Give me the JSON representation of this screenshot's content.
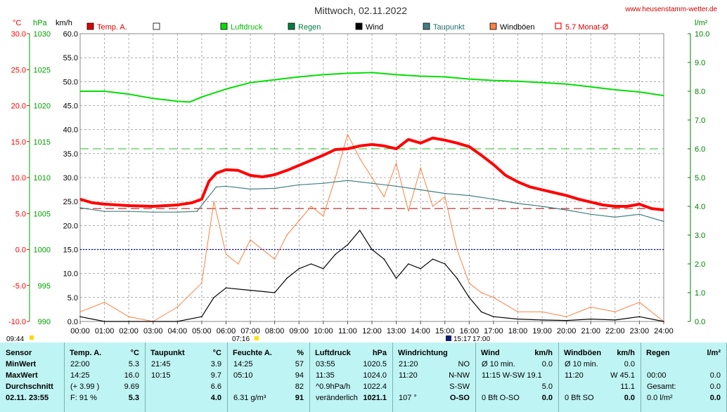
{
  "chart_data": {
    "type": "line",
    "title": "Mittwoch, 02.11.2022",
    "source_label": "www.heusenstamm-wetter.de",
    "x_ticks": [
      "00:00",
      "01:00",
      "02:00",
      "03:00",
      "04:00",
      "05:00",
      "06:00",
      "07:00",
      "08:00",
      "09:00",
      "10:00",
      "11:00",
      "12:00",
      "13:00",
      "14:00",
      "15:00",
      "16:00",
      "17:00",
      "18:00",
      "19:00",
      "20:00",
      "21:00",
      "22:00",
      "23:00",
      "24:00"
    ],
    "axes": {
      "temp": {
        "unit": "°C",
        "ticks": [
          "30.0",
          "25.0",
          "20.0",
          "15.0",
          "10.0",
          "5.0",
          "0.0",
          "-5.0",
          "-10.0"
        ],
        "ylim": [
          -10,
          30
        ],
        "color": "#ff0000"
      },
      "pressure": {
        "unit": "hPa",
        "ticks": [
          "1030",
          "1025",
          "1020",
          "1015",
          "1010",
          "1005",
          "1000",
          "995",
          "990"
        ],
        "ylim": [
          990,
          1030
        ],
        "color": "#00a000"
      },
      "wind": {
        "unit": "km/h",
        "ticks": [
          "60.0",
          "55.0",
          "50.0",
          "45.0",
          "40.0",
          "35.0",
          "30.0",
          "25.0",
          "20.0",
          "15.0",
          "10.0",
          "5.0",
          "0.0"
        ],
        "ylim": [
          0,
          60
        ],
        "color": "#000000"
      },
      "rain": {
        "unit": "l/m²",
        "ticks": [
          "10.0",
          "9.0",
          "8.0",
          "7.0",
          "6.0",
          "5.0",
          "4.0",
          "3.0",
          "2.0",
          "1.0",
          "0.0"
        ],
        "ylim": [
          0,
          10
        ],
        "color": "#008000"
      }
    },
    "legend": [
      {
        "name": "Temp. A.",
        "color": "#e00000",
        "marker": "box"
      },
      {
        "name": "",
        "color": "#ffffff",
        "marker": "box"
      },
      {
        "name": "Luftdruck",
        "color": "#00e000",
        "marker": "box"
      },
      {
        "name": "Regen",
        "color": "#008040",
        "marker": "box"
      },
      {
        "name": "Wind",
        "color": "#000000",
        "marker": "box"
      },
      {
        "name": "Taupunkt",
        "color": "#408080",
        "marker": "box"
      },
      {
        "name": "Windböen",
        "color": "#ff8040",
        "marker": "box"
      },
      {
        "name": "5.7 Monat-Ø",
        "color": "#ff0000",
        "marker": "outline"
      }
    ],
    "references": {
      "monthly_avg_temp": 5.7,
      "rain_threshold": 6.0,
      "zero_temp": 0.0
    },
    "time_markers": {
      "sunrise": "07:16",
      "sunset": "17:00",
      "moonrise": "09:44",
      "moonset": "15:17"
    },
    "series": [
      {
        "name": "Temp. A.",
        "unit": "°C",
        "color": "#ff0000",
        "points": [
          [
            0,
            7.0
          ],
          [
            0.5,
            6.5
          ],
          [
            1,
            6.3
          ],
          [
            2,
            6.1
          ],
          [
            3,
            6.0
          ],
          [
            4,
            6.2
          ],
          [
            4.6,
            6.5
          ],
          [
            5,
            7.0
          ],
          [
            5.3,
            9.5
          ],
          [
            5.6,
            10.6
          ],
          [
            6,
            11.1
          ],
          [
            6.5,
            11.0
          ],
          [
            7,
            10.3
          ],
          [
            7.5,
            10.1
          ],
          [
            8,
            10.4
          ],
          [
            8.5,
            11.0
          ],
          [
            9,
            11.7
          ],
          [
            9.5,
            12.4
          ],
          [
            10,
            13.1
          ],
          [
            10.5,
            13.9
          ],
          [
            11,
            14.0
          ],
          [
            11.5,
            14.4
          ],
          [
            12,
            14.6
          ],
          [
            12.5,
            14.4
          ],
          [
            13,
            14.0
          ],
          [
            13.5,
            15.3
          ],
          [
            14,
            14.8
          ],
          [
            14.5,
            15.5
          ],
          [
            15,
            15.2
          ],
          [
            15.5,
            14.8
          ],
          [
            16,
            14.3
          ],
          [
            16.5,
            13.1
          ],
          [
            17,
            11.8
          ],
          [
            17.5,
            10.3
          ],
          [
            18,
            9.4
          ],
          [
            18.5,
            8.7
          ],
          [
            19,
            8.3
          ],
          [
            19.5,
            7.9
          ],
          [
            20,
            7.5
          ],
          [
            20.5,
            7.0
          ],
          [
            21,
            6.6
          ],
          [
            21.5,
            6.2
          ],
          [
            22,
            6.0
          ],
          [
            22.5,
            6.0
          ],
          [
            23,
            6.3
          ],
          [
            23.5,
            5.7
          ],
          [
            24,
            5.5
          ]
        ]
      },
      {
        "name": "Taupunkt",
        "unit": "°C",
        "color": "#408080",
        "points": [
          [
            0,
            5.8
          ],
          [
            1,
            5.3
          ],
          [
            2,
            5.3
          ],
          [
            3,
            5.2
          ],
          [
            4,
            5.2
          ],
          [
            4.8,
            5.3
          ],
          [
            5.2,
            7.0
          ],
          [
            5.6,
            8.7
          ],
          [
            6,
            8.8
          ],
          [
            7,
            8.4
          ],
          [
            8,
            8.5
          ],
          [
            9,
            9.0
          ],
          [
            10,
            9.2
          ],
          [
            11,
            9.6
          ],
          [
            12,
            9.2
          ],
          [
            13,
            8.8
          ],
          [
            14,
            8.3
          ],
          [
            15,
            7.8
          ],
          [
            16,
            7.5
          ],
          [
            17,
            7.0
          ],
          [
            18,
            6.4
          ],
          [
            19,
            6.0
          ],
          [
            20,
            5.5
          ],
          [
            21,
            4.9
          ],
          [
            22,
            4.5
          ],
          [
            23,
            4.9
          ],
          [
            24,
            3.9
          ]
        ]
      },
      {
        "name": "Luftdruck",
        "unit": "hPa",
        "color": "#00e000",
        "points": [
          [
            0,
            1022.0
          ],
          [
            1,
            1022.0
          ],
          [
            2,
            1021.6
          ],
          [
            3,
            1021.0
          ],
          [
            4,
            1020.6
          ],
          [
            4.5,
            1020.5
          ],
          [
            5,
            1021.2
          ],
          [
            6,
            1022.3
          ],
          [
            7,
            1023.2
          ],
          [
            8,
            1023.6
          ],
          [
            9,
            1024.0
          ],
          [
            10,
            1024.3
          ],
          [
            11,
            1024.5
          ],
          [
            12,
            1024.6
          ],
          [
            13,
            1024.3
          ],
          [
            14,
            1024.1
          ],
          [
            15,
            1024.0
          ],
          [
            16,
            1023.7
          ],
          [
            17,
            1023.5
          ],
          [
            18,
            1023.4
          ],
          [
            19,
            1023.2
          ],
          [
            20,
            1023.0
          ],
          [
            21,
            1022.6
          ],
          [
            22,
            1022.2
          ],
          [
            23,
            1021.9
          ],
          [
            24,
            1021.4
          ]
        ]
      },
      {
        "name": "Wind",
        "unit": "km/h",
        "color": "#000000",
        "points": [
          [
            0,
            1.0
          ],
          [
            1,
            0.0
          ],
          [
            2,
            0.0
          ],
          [
            3,
            0.0
          ],
          [
            4,
            0.0
          ],
          [
            5,
            1.0
          ],
          [
            5.5,
            5.0
          ],
          [
            6,
            7.0
          ],
          [
            7,
            6.5
          ],
          [
            8,
            6.0
          ],
          [
            8.5,
            9.0
          ],
          [
            9,
            11.0
          ],
          [
            9.5,
            12.0
          ],
          [
            10,
            11.0
          ],
          [
            10.5,
            14.0
          ],
          [
            11,
            16.0
          ],
          [
            11.5,
            19.0
          ],
          [
            12,
            15.0
          ],
          [
            12.5,
            13.0
          ],
          [
            13,
            9.0
          ],
          [
            13.5,
            12.0
          ],
          [
            14,
            11.0
          ],
          [
            14.5,
            13.0
          ],
          [
            15,
            12.0
          ],
          [
            15.5,
            9.0
          ],
          [
            16,
            5.0
          ],
          [
            16.5,
            2.0
          ],
          [
            17,
            1.0
          ],
          [
            18,
            0.5
          ],
          [
            19,
            0.3
          ],
          [
            20,
            0.2
          ],
          [
            21,
            0.5
          ],
          [
            22,
            0.3
          ],
          [
            23,
            1.0
          ],
          [
            24,
            0.0
          ]
        ]
      },
      {
        "name": "Windböen",
        "unit": "km/h",
        "color": "#ff8040",
        "points": [
          [
            0,
            2.0
          ],
          [
            1,
            4.0
          ],
          [
            2,
            1.0
          ],
          [
            3,
            0.0
          ],
          [
            4,
            3.0
          ],
          [
            5,
            8.0
          ],
          [
            5.5,
            25.0
          ],
          [
            6,
            14.0
          ],
          [
            6.5,
            12.0
          ],
          [
            7,
            17.0
          ],
          [
            7.5,
            15.0
          ],
          [
            8,
            13.0
          ],
          [
            8.5,
            18.0
          ],
          [
            9,
            21.0
          ],
          [
            9.5,
            24.0
          ],
          [
            10,
            22.0
          ],
          [
            10.5,
            30.0
          ],
          [
            11,
            39.0
          ],
          [
            11.5,
            34.0
          ],
          [
            12,
            30.0
          ],
          [
            12.5,
            26.0
          ],
          [
            13,
            33.0
          ],
          [
            13.5,
            23.0
          ],
          [
            14,
            32.0
          ],
          [
            14.5,
            24.0
          ],
          [
            15,
            26.0
          ],
          [
            15.5,
            15.0
          ],
          [
            16,
            8.0
          ],
          [
            16.5,
            6.0
          ],
          [
            17,
            5.0
          ],
          [
            18,
            2.0
          ],
          [
            19,
            2.0
          ],
          [
            20,
            1.0
          ],
          [
            21,
            3.0
          ],
          [
            22,
            2.0
          ],
          [
            23,
            4.0
          ],
          [
            24,
            0.0
          ]
        ]
      }
    ]
  },
  "table": {
    "row_labels": [
      "Sensor",
      "MinWert",
      "MaxWert",
      "Durchschnitt",
      "02.11.  23:55"
    ],
    "temp": {
      "header": "Temp. A.",
      "unit": "°C",
      "rows": [
        [
          "22:00",
          "5.3"
        ],
        [
          "14:25",
          "16.0"
        ],
        [
          "(+ 3.99 )",
          "9.69"
        ],
        [
          "F: 91 %",
          "5.3"
        ]
      ]
    },
    "taupunkt": {
      "header": "Taupunkt",
      "unit": "°C",
      "rows": [
        [
          "21:45",
          "3.9"
        ],
        [
          "10:15",
          "9.7"
        ],
        [
          "",
          "6.6"
        ],
        [
          "",
          "4.0"
        ]
      ]
    },
    "feuchte": {
      "header": "Feuchte A.",
      "unit": "%",
      "rows": [
        [
          "14:25",
          "57"
        ],
        [
          "05:10",
          "94"
        ],
        [
          "",
          "82"
        ],
        [
          "6.31 g/m³",
          "91"
        ]
      ]
    },
    "luftdruck": {
      "header": "Luftdruck",
      "unit": "hPa",
      "rows": [
        [
          "03:55",
          "1020.5"
        ],
        [
          "11:35",
          "1024.0"
        ],
        [
          "^0.9hPa/h",
          "1022.4"
        ],
        [
          "veränderlich",
          "1021.1"
        ]
      ]
    },
    "windrichtung": {
      "header": "Windrichtung",
      "rows": [
        [
          "21:20",
          "NO"
        ],
        [
          "11:20",
          "N-NW"
        ],
        [
          "",
          "S-SW"
        ],
        [
          "107 °",
          "O-SO"
        ]
      ]
    },
    "wind": {
      "header": "Wind",
      "unit": "km/h",
      "rows": [
        [
          "Ø 10 min.",
          "0.0"
        ],
        [
          "11:15   W-SW 19.1",
          ""
        ],
        [
          "",
          "5.0"
        ],
        [
          "0 Bft O-SO",
          "0.0"
        ]
      ]
    },
    "windboeen": {
      "header": "Windböen",
      "unit": "km/h",
      "rows": [
        [
          "Ø 10 min.",
          "0.0"
        ],
        [
          "11:20",
          "W 45.1"
        ],
        [
          "",
          "11.1"
        ],
        [
          "0 Bft SO",
          "0.0"
        ]
      ]
    },
    "regen": {
      "header": "Regen",
      "unit": "l/m²",
      "rows": [
        [
          "",
          ""
        ],
        [
          "00:00",
          "0.0"
        ],
        [
          "Gesamt:",
          "0.0"
        ],
        [
          "0.0 l/m²",
          "0.0"
        ]
      ]
    }
  }
}
